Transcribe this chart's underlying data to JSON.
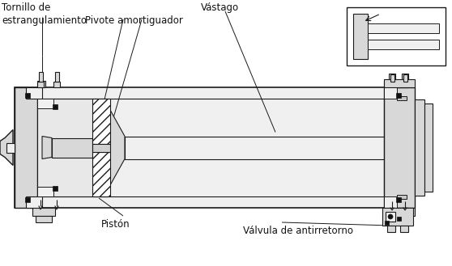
{
  "bg_color": "#ffffff",
  "lc": "#1a1a1a",
  "fill_light": "#f0f0f0",
  "fill_mid": "#d8d8d8",
  "fill_dark": "#b0b0b0",
  "labels": {
    "tornillo": "Tornillo de\nestrangulamiento",
    "pivote": "Pivote amortiguador",
    "vastago": "Vástago",
    "piston": "Pistón",
    "valvula": "Válvula de antirretorno"
  },
  "fontsize": 8.5
}
